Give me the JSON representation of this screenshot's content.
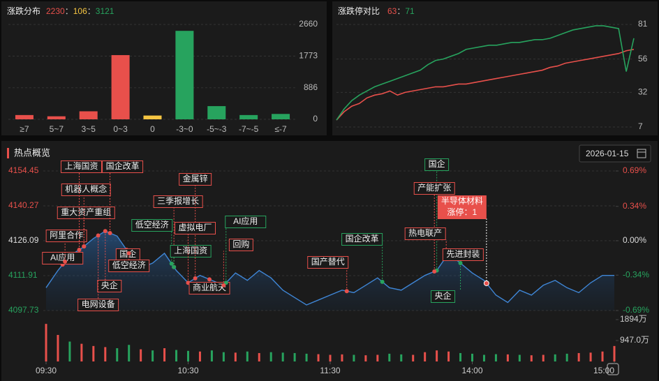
{
  "controls": {
    "date": "2026-01-15"
  },
  "chart_data": [
    {
      "type": "bar",
      "title": "涨跌分布",
      "summary": [
        {
          "value": 2230,
          "color": "#e8504b"
        },
        {
          "value": 106,
          "color": "#f5c542"
        },
        {
          "value": 3121,
          "color": "#27a35e"
        }
      ],
      "separator": "：",
      "categories": [
        "≥7",
        "5~7",
        "3~5",
        "0~3",
        "0",
        "-3~0",
        "-5~-3",
        "-7~-5",
        "≤-7"
      ],
      "values": [
        120,
        85,
        225,
        1800,
        106,
        2480,
        370,
        120,
        151
      ],
      "colors": [
        "#e8504b",
        "#e8504b",
        "#e8504b",
        "#e8504b",
        "#f5c542",
        "#27a35e",
        "#27a35e",
        "#27a35e",
        "#27a35e"
      ],
      "ylim": [
        0,
        2660
      ],
      "yticks": [
        0,
        886,
        1773,
        2660
      ],
      "grid": true
    },
    {
      "type": "line",
      "title": "涨跌停对比",
      "summary": [
        {
          "value": 63,
          "color": "#e8504b"
        },
        {
          "value": 71,
          "color": "#27a35e"
        }
      ],
      "separator": "：",
      "categories": [
        null,
        null,
        null,
        null,
        null,
        null,
        null,
        null,
        null,
        null,
        null,
        null,
        null,
        null,
        null,
        null,
        null,
        null,
        null,
        null,
        null,
        null,
        null,
        null,
        null,
        null,
        null,
        null,
        null,
        null,
        null,
        null,
        null,
        null,
        null,
        null,
        null,
        null,
        null,
        null
      ],
      "series": [
        {
          "color": "#e8504b",
          "values": [
            12,
            18,
            22,
            24,
            28,
            30,
            31,
            33,
            30,
            32,
            33,
            34,
            35,
            36,
            36,
            37,
            38,
            38,
            39,
            40,
            41,
            42,
            43,
            44,
            45,
            46,
            47,
            48,
            50,
            51,
            53,
            54,
            55,
            56,
            57,
            58,
            59,
            60,
            62,
            63
          ]
        },
        {
          "color": "#27a35e",
          "values": [
            12,
            20,
            26,
            30,
            33,
            36,
            38,
            40,
            42,
            44,
            46,
            48,
            52,
            55,
            56,
            58,
            60,
            63,
            64,
            65,
            66,
            66,
            67,
            68,
            68,
            69,
            70,
            70,
            71,
            73,
            75,
            77,
            78,
            79,
            80,
            80,
            79,
            78,
            47,
            71
          ]
        }
      ],
      "ylim": [
        7,
        81
      ],
      "yticks": [
        7,
        32,
        56,
        81
      ],
      "grid": true
    },
    {
      "type": "line",
      "title": "热点概览",
      "color": "#3f86d6",
      "x": [
        0,
        5,
        10,
        15,
        20,
        25,
        30,
        35,
        40,
        45,
        50,
        55,
        60,
        65,
        70,
        75,
        80,
        85,
        90,
        95,
        100,
        105,
        110,
        115,
        120,
        125,
        130,
        135,
        140,
        145,
        150,
        155,
        160,
        165,
        170,
        175,
        180,
        185,
        190,
        195,
        200,
        205,
        210,
        215,
        220,
        225,
        230,
        235,
        240
      ],
      "values": [
        4107,
        4114,
        4120,
        4123,
        4127,
        4130,
        4128,
        4121,
        4115,
        4117,
        4121,
        4114,
        4109,
        4112,
        4110,
        4108,
        4113,
        4110,
        4114,
        4111,
        4106,
        4103,
        4100,
        4102,
        4104,
        4106,
        4105,
        4108,
        4111,
        4107,
        4106,
        4109,
        4112,
        4114,
        4121,
        4117,
        4113,
        4110,
        4104,
        4101,
        4106,
        4104,
        4108,
        4110,
        4107,
        4105,
        4109,
        4112,
        4112
      ],
      "xlim": [
        0,
        240
      ],
      "xticks": [
        {
          "value": 0,
          "label": "09:30"
        },
        {
          "value": 60,
          "label": "10:30"
        },
        {
          "value": 120,
          "label": "11:30"
        },
        {
          "value": 180,
          "label": "14:00"
        },
        {
          "value": 240,
          "label": "15:00"
        }
      ],
      "ylim": [
        4097.73,
        4154.45
      ],
      "yticks": [
        4154.45,
        4140.27,
        4126.09,
        4111.91,
        4097.73
      ],
      "y2lim": [
        -0.69,
        0.69
      ],
      "y2ticks": [
        {
          "value": 0.69,
          "label": "0.69%"
        },
        {
          "value": 0.34,
          "label": "0.34%"
        },
        {
          "value": 0,
          "label": "0.00%"
        },
        {
          "value": -0.34,
          "label": "-0.34%"
        },
        {
          "value": -0.69,
          "label": "-0.69%"
        }
      ],
      "grid": true,
      "volume": {
        "values": [
          1700,
          1200,
          900,
          800,
          700,
          650,
          600,
          750,
          550,
          500,
          600,
          520,
          480,
          450,
          500,
          420,
          400,
          450,
          380,
          420,
          400,
          380,
          350,
          330,
          300,
          320,
          300,
          280,
          300,
          350,
          320,
          300,
          420,
          500,
          450,
          380,
          350,
          300,
          330,
          320,
          300,
          280,
          300,
          320,
          350,
          380,
          400,
          450,
          700
        ],
        "colors": [
          "#e8504b",
          "#e8504b",
          "#27a35e",
          "#e8504b",
          "#e8504b",
          "#e8504b",
          "#27a35e",
          "#27a35e",
          "#e8504b",
          "#27a35e",
          "#e8504b",
          "#27a35e",
          "#27a35e",
          "#e8504b",
          "#27a35e",
          "#27a35e",
          "#e8504b",
          "#27a35e",
          "#e8504b",
          "#27a35e",
          "#27a35e",
          "#27a35e",
          "#27a35e",
          "#e8504b",
          "#e8504b",
          "#e8504b",
          "#27a35e",
          "#e8504b",
          "#e8504b",
          "#27a35e",
          "#27a35e",
          "#e8504b",
          "#e8504b",
          "#e8504b",
          "#e8504b",
          "#27a35e",
          "#27a35e",
          "#27a35e",
          "#27a35e",
          "#e8504b",
          "#27a35e",
          "#e8504b",
          "#e8504b",
          "#27a35e",
          "#27a35e",
          "#e8504b",
          "#e8504b",
          "#e8504b",
          "#e8504b"
        ],
        "ylim": [
          0,
          1894
        ],
        "yticks": [
          {
            "value": 947,
            "label": "947.0万"
          },
          {
            "value": 1894,
            "label": "1894万"
          }
        ]
      },
      "annotations": [
        {
          "text": "AI应用",
          "x": 7,
          "color": "#e8504b"
        },
        {
          "text": "阿里合作",
          "x": 8,
          "color": "#e8504b"
        },
        {
          "text": "重大资产重组",
          "x": 16,
          "color": "#e8504b"
        },
        {
          "text": "机器人概念",
          "x": 16,
          "color": "#e8504b"
        },
        {
          "text": "上海国资",
          "x": 14,
          "color": "#e8504b"
        },
        {
          "text": "国企改革",
          "x": 27,
          "color": "#e8504b"
        },
        {
          "text": "央企",
          "x": 25,
          "color": "#e8504b"
        },
        {
          "text": "电网设备",
          "x": 22,
          "color": "#e8504b"
        },
        {
          "text": "国企",
          "x": 34,
          "color": "#e8504b"
        },
        {
          "text": "低空经济",
          "x": 35,
          "color": "#e8504b"
        },
        {
          "text": "低空经济",
          "x": 53,
          "color": "#27a35e"
        },
        {
          "text": "三季报增长",
          "x": 54,
          "color": "#e8504b"
        },
        {
          "text": "上海国资",
          "x": 54,
          "color": "#27a35e"
        },
        {
          "text": "金属锌",
          "x": 63,
          "color": "#e8504b"
        },
        {
          "text": "虚拟电厂",
          "x": 60,
          "color": "#e8504b"
        },
        {
          "text": "商业航天",
          "x": 69,
          "color": "#e8504b"
        },
        {
          "text": "AI应用",
          "x": 76,
          "color": "#27a35e"
        },
        {
          "text": "回购",
          "x": 75,
          "color": "#e8504b"
        },
        {
          "text": "国产替代",
          "x": 127,
          "color": "#e8504b"
        },
        {
          "text": "国企改革",
          "x": 142,
          "color": "#27a35e"
        },
        {
          "text": "国企",
          "x": 165,
          "color": "#27a35e"
        },
        {
          "text": "产能扩张",
          "x": 164,
          "color": "#e8504b"
        },
        {
          "text": "热电联产",
          "x": 169,
          "color": "#e8504b"
        },
        {
          "text": "先进封装",
          "x": 172,
          "color": "#e8504b"
        },
        {
          "text": "央企",
          "x": 175,
          "color": "#27a35e"
        }
      ],
      "tooltip": {
        "x": 186,
        "title": "半导体材料",
        "lines": [
          "涨停：1"
        ]
      }
    }
  ]
}
